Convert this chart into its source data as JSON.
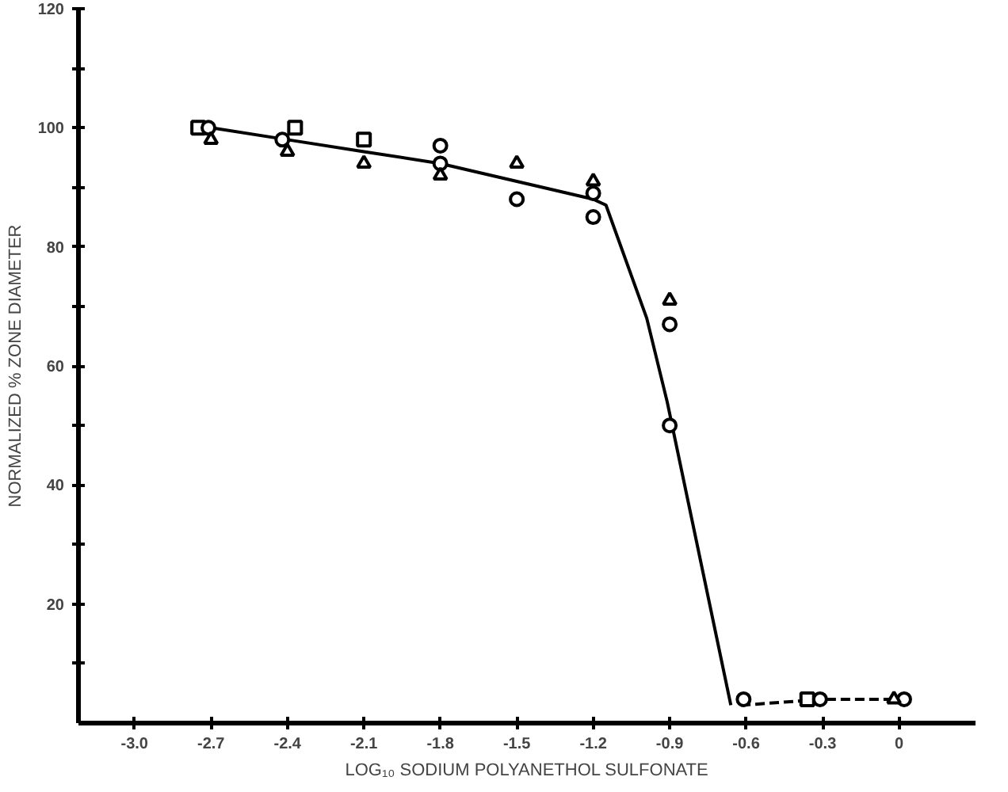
{
  "chart_data": {
    "type": "scatter",
    "xlabel": "LOG₁₀ SODIUM POLYANETHOL SULFONATE",
    "ylabel": "NORMALIZED % ZONE DIAMETER",
    "xlim": [
      -3.22,
      0.3
    ],
    "ylim": [
      0,
      120
    ],
    "xticks": [
      {
        "value": -3.0,
        "label": "-3.0"
      },
      {
        "value": -2.7,
        "label": "-2.7"
      },
      {
        "value": -2.4,
        "label": "-2.4"
      },
      {
        "value": -2.1,
        "label": "-2.1"
      },
      {
        "value": -1.8,
        "label": "-1.8"
      },
      {
        "value": -1.5,
        "label": "-1.5"
      },
      {
        "value": -1.2,
        "label": "-1.2"
      },
      {
        "value": -0.9,
        "label": "-0.9"
      },
      {
        "value": -0.6,
        "label": "-0.6"
      },
      {
        "value": -0.3,
        "label": "-0.3"
      },
      0
    ],
    "yticks": [
      {
        "value": 10,
        "label": null
      },
      20,
      {
        "value": 30,
        "label": null
      },
      40,
      {
        "value": 50,
        "label": null
      },
      60,
      {
        "value": 70,
        "label": null
      },
      80,
      {
        "value": 90,
        "label": null
      },
      100,
      {
        "value": 110,
        "label": null
      },
      120
    ],
    "grid": false,
    "series": [
      {
        "type": "line",
        "color": "#000000",
        "marker": "none",
        "line_style": "solid",
        "x": [
          -2.7,
          -2.4,
          -2.1,
          -1.8,
          -1.5,
          -1.2,
          -1.15,
          -0.99,
          -0.91,
          -0.66
        ],
        "values": [
          100,
          98,
          96,
          94,
          91,
          88,
          87,
          68,
          54,
          3
        ]
      },
      {
        "type": "line",
        "color": "#000000",
        "marker": "none",
        "line_style": "dashed",
        "x": [
          -0.62,
          -0.3,
          0
        ],
        "values": [
          3,
          4,
          4
        ]
      },
      {
        "color": "#000000",
        "marker": "square",
        "x": [
          -2.75,
          -2.37,
          -2.1,
          -0.36
        ],
        "values": [
          100,
          100,
          98,
          4
        ]
      },
      {
        "color": "#000000",
        "marker": "circle",
        "x": [
          -2.71,
          -2.42,
          -1.8,
          -1.8,
          -1.5,
          -1.2,
          -1.2,
          -0.9,
          -0.9,
          -0.61,
          -0.31,
          0.02
        ],
        "values": [
          100,
          98,
          97,
          94,
          88,
          89,
          85,
          67,
          50,
          4,
          4,
          4
        ]
      },
      {
        "color": "#000000",
        "marker": "triangle",
        "x": [
          -2.7,
          -2.4,
          -2.1,
          -1.8,
          -1.5,
          -1.2,
          -0.9,
          -0.02
        ],
        "values": [
          98,
          96,
          94,
          92,
          94,
          91,
          71,
          4
        ]
      }
    ]
  }
}
